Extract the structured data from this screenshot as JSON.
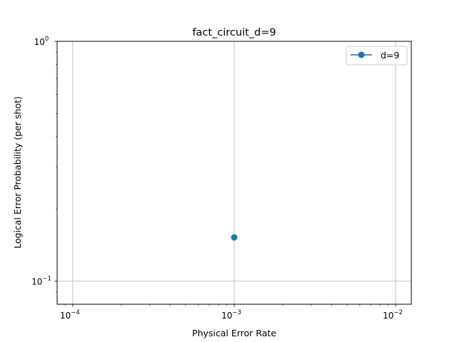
{
  "chart_data": {
    "type": "line",
    "title": "fact_circuit_d=9",
    "xlabel": "Physical Error Rate",
    "ylabel": "Logical Error Probability (per shot)",
    "xscale": "log",
    "yscale": "log",
    "xlim": [
      8e-05,
      0.0125
    ],
    "ylim": [
      0.08,
      1.0
    ],
    "grid": true,
    "legend_position": "top-right",
    "x_ticks": [
      {
        "value": 0.0001,
        "base": "10",
        "exp": "−4"
      },
      {
        "value": 0.001,
        "base": "10",
        "exp": "−3"
      },
      {
        "value": 0.01,
        "base": "10",
        "exp": "−2"
      }
    ],
    "y_ticks": [
      {
        "value": 0.1,
        "base": "10",
        "exp": "−1"
      },
      {
        "value": 1.0,
        "base": "10",
        "exp": "0"
      }
    ],
    "series": [
      {
        "name": "d=9",
        "color": "#1f77b4",
        "marker": "circle",
        "x": [
          0.001
        ],
        "y": [
          0.152
        ]
      }
    ]
  }
}
